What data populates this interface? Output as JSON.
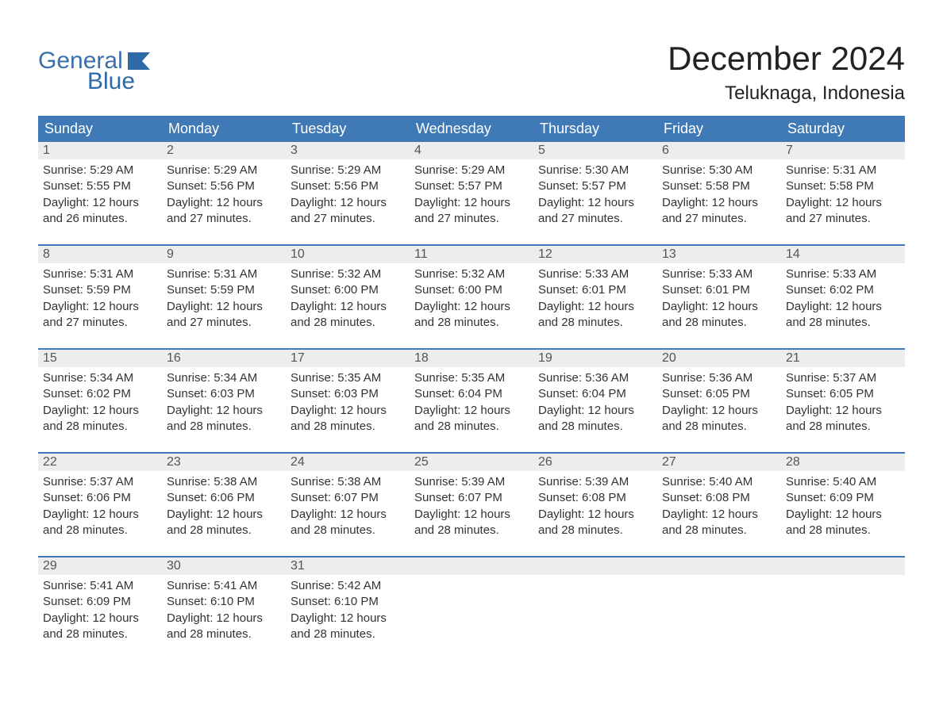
{
  "brand": {
    "word1": "General",
    "word2": "Blue"
  },
  "title": "December 2024",
  "location": "Teluknaga, Indonesia",
  "colors": {
    "header_bg": "#3f79b6",
    "header_text": "#ffffff",
    "daynum_bg": "#ededed",
    "daynum_text": "#555555",
    "body_text": "#333333",
    "rule": "#3f79b6",
    "logo": "#3a6fa9"
  },
  "typography": {
    "title_fontsize": 42,
    "location_fontsize": 24,
    "header_fontsize": 18,
    "body_fontsize": 15
  },
  "day_labels": [
    "Sunday",
    "Monday",
    "Tuesday",
    "Wednesday",
    "Thursday",
    "Friday",
    "Saturday"
  ],
  "weeks": [
    [
      {
        "n": "1",
        "sunrise": "5:29 AM",
        "sunset": "5:55 PM",
        "daylight": "12 hours and 26 minutes."
      },
      {
        "n": "2",
        "sunrise": "5:29 AM",
        "sunset": "5:56 PM",
        "daylight": "12 hours and 27 minutes."
      },
      {
        "n": "3",
        "sunrise": "5:29 AM",
        "sunset": "5:56 PM",
        "daylight": "12 hours and 27 minutes."
      },
      {
        "n": "4",
        "sunrise": "5:29 AM",
        "sunset": "5:57 PM",
        "daylight": "12 hours and 27 minutes."
      },
      {
        "n": "5",
        "sunrise": "5:30 AM",
        "sunset": "5:57 PM",
        "daylight": "12 hours and 27 minutes."
      },
      {
        "n": "6",
        "sunrise": "5:30 AM",
        "sunset": "5:58 PM",
        "daylight": "12 hours and 27 minutes."
      },
      {
        "n": "7",
        "sunrise": "5:31 AM",
        "sunset": "5:58 PM",
        "daylight": "12 hours and 27 minutes."
      }
    ],
    [
      {
        "n": "8",
        "sunrise": "5:31 AM",
        "sunset": "5:59 PM",
        "daylight": "12 hours and 27 minutes."
      },
      {
        "n": "9",
        "sunrise": "5:31 AM",
        "sunset": "5:59 PM",
        "daylight": "12 hours and 27 minutes."
      },
      {
        "n": "10",
        "sunrise": "5:32 AM",
        "sunset": "6:00 PM",
        "daylight": "12 hours and 28 minutes."
      },
      {
        "n": "11",
        "sunrise": "5:32 AM",
        "sunset": "6:00 PM",
        "daylight": "12 hours and 28 minutes."
      },
      {
        "n": "12",
        "sunrise": "5:33 AM",
        "sunset": "6:01 PM",
        "daylight": "12 hours and 28 minutes."
      },
      {
        "n": "13",
        "sunrise": "5:33 AM",
        "sunset": "6:01 PM",
        "daylight": "12 hours and 28 minutes."
      },
      {
        "n": "14",
        "sunrise": "5:33 AM",
        "sunset": "6:02 PM",
        "daylight": "12 hours and 28 minutes."
      }
    ],
    [
      {
        "n": "15",
        "sunrise": "5:34 AM",
        "sunset": "6:02 PM",
        "daylight": "12 hours and 28 minutes."
      },
      {
        "n": "16",
        "sunrise": "5:34 AM",
        "sunset": "6:03 PM",
        "daylight": "12 hours and 28 minutes."
      },
      {
        "n": "17",
        "sunrise": "5:35 AM",
        "sunset": "6:03 PM",
        "daylight": "12 hours and 28 minutes."
      },
      {
        "n": "18",
        "sunrise": "5:35 AM",
        "sunset": "6:04 PM",
        "daylight": "12 hours and 28 minutes."
      },
      {
        "n": "19",
        "sunrise": "5:36 AM",
        "sunset": "6:04 PM",
        "daylight": "12 hours and 28 minutes."
      },
      {
        "n": "20",
        "sunrise": "5:36 AM",
        "sunset": "6:05 PM",
        "daylight": "12 hours and 28 minutes."
      },
      {
        "n": "21",
        "sunrise": "5:37 AM",
        "sunset": "6:05 PM",
        "daylight": "12 hours and 28 minutes."
      }
    ],
    [
      {
        "n": "22",
        "sunrise": "5:37 AM",
        "sunset": "6:06 PM",
        "daylight": "12 hours and 28 minutes."
      },
      {
        "n": "23",
        "sunrise": "5:38 AM",
        "sunset": "6:06 PM",
        "daylight": "12 hours and 28 minutes."
      },
      {
        "n": "24",
        "sunrise": "5:38 AM",
        "sunset": "6:07 PM",
        "daylight": "12 hours and 28 minutes."
      },
      {
        "n": "25",
        "sunrise": "5:39 AM",
        "sunset": "6:07 PM",
        "daylight": "12 hours and 28 minutes."
      },
      {
        "n": "26",
        "sunrise": "5:39 AM",
        "sunset": "6:08 PM",
        "daylight": "12 hours and 28 minutes."
      },
      {
        "n": "27",
        "sunrise": "5:40 AM",
        "sunset": "6:08 PM",
        "daylight": "12 hours and 28 minutes."
      },
      {
        "n": "28",
        "sunrise": "5:40 AM",
        "sunset": "6:09 PM",
        "daylight": "12 hours and 28 minutes."
      }
    ],
    [
      {
        "n": "29",
        "sunrise": "5:41 AM",
        "sunset": "6:09 PM",
        "daylight": "12 hours and 28 minutes."
      },
      {
        "n": "30",
        "sunrise": "5:41 AM",
        "sunset": "6:10 PM",
        "daylight": "12 hours and 28 minutes."
      },
      {
        "n": "31",
        "sunrise": "5:42 AM",
        "sunset": "6:10 PM",
        "daylight": "12 hours and 28 minutes."
      },
      null,
      null,
      null,
      null
    ]
  ],
  "labels": {
    "sunrise": "Sunrise:",
    "sunset": "Sunset:",
    "daylight": "Daylight:"
  }
}
